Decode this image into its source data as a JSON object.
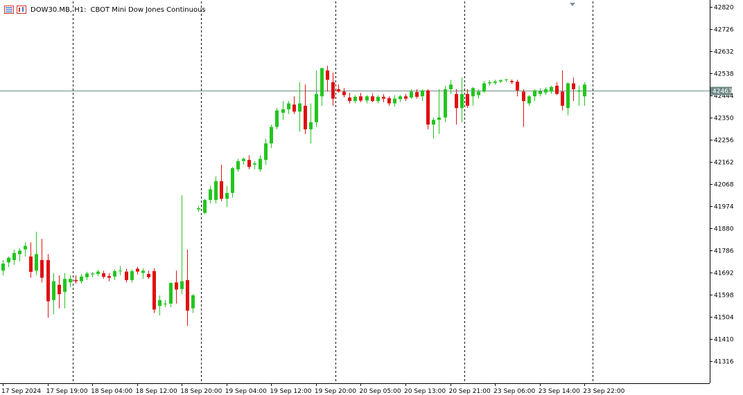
{
  "header": {
    "symbol": "DOW30.MB",
    "timeframe": "H1:",
    "description": "CBOT Mini Dow Jones Continuous"
  },
  "icons": [
    "quotes-icon",
    "chart-icon",
    "scroll-marker-icon"
  ],
  "colors": {
    "bull": "#22c51e",
    "bear": "#e01010",
    "current_price_line": "#6f8a87",
    "price_tag_bg": "#6f8a87",
    "separator": "#000000",
    "axis": "#000000"
  },
  "chart_data": {
    "type": "candlestick",
    "ylim": [
      41222,
      42843
    ],
    "y_ticks": [
      42820,
      42726,
      42632,
      42538,
      42444,
      42350,
      42256,
      42162,
      42068,
      41974,
      41880,
      41786,
      41692,
      41598,
      41504,
      41410,
      41316
    ],
    "current_price": 42463,
    "x_labels": [
      {
        "label": "17 Sep 2024",
        "bar": 0
      },
      {
        "label": "17 Sep 19:00",
        "bar": 8
      },
      {
        "label": "18 Sep 04:00",
        "bar": 16
      },
      {
        "label": "18 Sep 12:00",
        "bar": 24
      },
      {
        "label": "18 Sep 20:00",
        "bar": 32
      },
      {
        "label": "19 Sep 04:00",
        "bar": 40
      },
      {
        "label": "19 Sep 12:00",
        "bar": 48
      },
      {
        "label": "19 Sep 20:00",
        "bar": 56
      },
      {
        "label": "20 Sep 05:00",
        "bar": 64
      },
      {
        "label": "20 Sep 13:00",
        "bar": 72
      },
      {
        "label": "20 Sep 21:00",
        "bar": 80
      },
      {
        "label": "23 Sep 06:00",
        "bar": 88
      },
      {
        "label": "23 Sep 14:00",
        "bar": 96
      },
      {
        "label": "23 Sep 22:00",
        "bar": 104
      }
    ],
    "day_separators_after_bar": [
      12.5,
      35.5,
      59.5,
      82.5,
      105.5
    ],
    "candles": [
      {
        "o": 41700,
        "h": 41745,
        "l": 41680,
        "c": 41730
      },
      {
        "o": 41735,
        "h": 41760,
        "l": 41715,
        "c": 41755
      },
      {
        "o": 41745,
        "h": 41790,
        "l": 41725,
        "c": 41775
      },
      {
        "o": 41770,
        "h": 41795,
        "l": 41740,
        "c": 41785
      },
      {
        "o": 41790,
        "h": 41820,
        "l": 41760,
        "c": 41805
      },
      {
        "o": 41760,
        "h": 41820,
        "l": 41670,
        "c": 41695
      },
      {
        "o": 41700,
        "h": 41865,
        "l": 41680,
        "c": 41770
      },
      {
        "o": 41745,
        "h": 41835,
        "l": 41650,
        "c": 41670
      },
      {
        "o": 41745,
        "h": 41770,
        "l": 41500,
        "c": 41570
      },
      {
        "o": 41575,
        "h": 41690,
        "l": 41515,
        "c": 41655
      },
      {
        "o": 41640,
        "h": 41680,
        "l": 41540,
        "c": 41600
      },
      {
        "o": 41610,
        "h": 41690,
        "l": 41540,
        "c": 41665
      },
      {
        "o": 41650,
        "h": 41680,
        "l": 41630,
        "c": 41665
      },
      {
        "o": 41660,
        "h": 41680,
        "l": 41645,
        "c": 41655
      },
      {
        "o": 41655,
        "h": 41685,
        "l": 41645,
        "c": 41675
      },
      {
        "o": 41672,
        "h": 41695,
        "l": 41660,
        "c": 41688
      },
      {
        "o": 41684,
        "h": 41694,
        "l": 41672,
        "c": 41688
      },
      {
        "o": 41686,
        "h": 41704,
        "l": 41676,
        "c": 41696
      },
      {
        "o": 41689,
        "h": 41700,
        "l": 41665,
        "c": 41674
      },
      {
        "o": 41677,
        "h": 41690,
        "l": 41655,
        "c": 41670
      },
      {
        "o": 41675,
        "h": 41705,
        "l": 41660,
        "c": 41698
      },
      {
        "o": 41698,
        "h": 41720,
        "l": 41680,
        "c": 41700
      },
      {
        "o": 41696,
        "h": 41708,
        "l": 41650,
        "c": 41660
      },
      {
        "o": 41660,
        "h": 41705,
        "l": 41650,
        "c": 41698
      },
      {
        "o": 41708,
        "h": 41716,
        "l": 41684,
        "c": 41696
      },
      {
        "o": 41690,
        "h": 41710,
        "l": 41665,
        "c": 41700
      },
      {
        "o": 41686,
        "h": 41700,
        "l": 41665,
        "c": 41672
      },
      {
        "o": 41698,
        "h": 41710,
        "l": 41520,
        "c": 41535
      },
      {
        "o": 41550,
        "h": 41595,
        "l": 41510,
        "c": 41575
      },
      {
        "o": 41558,
        "h": 41575,
        "l": 41545,
        "c": 41560
      },
      {
        "o": 41560,
        "h": 41650,
        "l": 41545,
        "c": 41648
      },
      {
        "o": 41650,
        "h": 41700,
        "l": 41560,
        "c": 41620
      },
      {
        "o": 41622,
        "h": 42020,
        "l": 41600,
        "c": 41655
      },
      {
        "o": 41660,
        "h": 41790,
        "l": 41465,
        "c": 41530
      },
      {
        "o": 41540,
        "h": 41600,
        "l": 41520,
        "c": 41595
      },
      {
        "o": 41960,
        "h": 41975,
        "l": 41950,
        "c": 41965
      },
      {
        "o": 41945,
        "h": 42005,
        "l": 41940,
        "c": 42000
      },
      {
        "o": 42000,
        "h": 42060,
        "l": 41985,
        "c": 42045
      },
      {
        "o": 42000,
        "h": 42100,
        "l": 41985,
        "c": 42080
      },
      {
        "o": 42080,
        "h": 42150,
        "l": 41995,
        "c": 42005
      },
      {
        "o": 42005,
        "h": 42060,
        "l": 41970,
        "c": 42030
      },
      {
        "o": 42030,
        "h": 42140,
        "l": 42010,
        "c": 42135
      },
      {
        "o": 42130,
        "h": 42175,
        "l": 42120,
        "c": 42165
      },
      {
        "o": 42165,
        "h": 42180,
        "l": 42150,
        "c": 42175
      },
      {
        "o": 42170,
        "h": 42190,
        "l": 42130,
        "c": 42140
      },
      {
        "o": 42150,
        "h": 42165,
        "l": 42130,
        "c": 42155
      },
      {
        "o": 42130,
        "h": 42190,
        "l": 42120,
        "c": 42175
      },
      {
        "o": 42170,
        "h": 42260,
        "l": 42150,
        "c": 42240
      },
      {
        "o": 42240,
        "h": 42320,
        "l": 42220,
        "c": 42310
      },
      {
        "o": 42310,
        "h": 42390,
        "l": 42300,
        "c": 42380
      },
      {
        "o": 42370,
        "h": 42420,
        "l": 42340,
        "c": 42385
      },
      {
        "o": 42385,
        "h": 42420,
        "l": 42365,
        "c": 42410
      },
      {
        "o": 42405,
        "h": 42440,
        "l": 42365,
        "c": 42375
      },
      {
        "o": 42375,
        "h": 42500,
        "l": 42290,
        "c": 42410
      },
      {
        "o": 42400,
        "h": 42490,
        "l": 42280,
        "c": 42300
      },
      {
        "o": 42300,
        "h": 42410,
        "l": 42240,
        "c": 42330
      },
      {
        "o": 42330,
        "h": 42550,
        "l": 42310,
        "c": 42450
      },
      {
        "o": 42440,
        "h": 42560,
        "l": 42400,
        "c": 42560
      },
      {
        "o": 42550,
        "h": 42570,
        "l": 42460,
        "c": 42510
      },
      {
        "o": 42500,
        "h": 42540,
        "l": 42400,
        "c": 42430
      },
      {
        "o": 42470,
        "h": 42490,
        "l": 42455,
        "c": 42460
      },
      {
        "o": 42460,
        "h": 42475,
        "l": 42435,
        "c": 42445
      },
      {
        "o": 42435,
        "h": 42455,
        "l": 42410,
        "c": 42420
      },
      {
        "o": 42420,
        "h": 42445,
        "l": 42410,
        "c": 42438
      },
      {
        "o": 42440,
        "h": 42455,
        "l": 42415,
        "c": 42422
      },
      {
        "o": 42422,
        "h": 42445,
        "l": 42410,
        "c": 42440
      },
      {
        "o": 42440,
        "h": 42452,
        "l": 42415,
        "c": 42420
      },
      {
        "o": 42420,
        "h": 42445,
        "l": 42410,
        "c": 42438
      },
      {
        "o": 42438,
        "h": 42450,
        "l": 42415,
        "c": 42430
      },
      {
        "o": 42432,
        "h": 42440,
        "l": 42400,
        "c": 42410
      },
      {
        "o": 42410,
        "h": 42445,
        "l": 42395,
        "c": 42430
      },
      {
        "o": 42428,
        "h": 42445,
        "l": 42415,
        "c": 42440
      },
      {
        "o": 42440,
        "h": 42450,
        "l": 42420,
        "c": 42430
      },
      {
        "o": 42435,
        "h": 42470,
        "l": 42430,
        "c": 42460
      },
      {
        "o": 42458,
        "h": 42470,
        "l": 42430,
        "c": 42438
      },
      {
        "o": 42440,
        "h": 42470,
        "l": 42420,
        "c": 42465
      },
      {
        "o": 42465,
        "h": 42470,
        "l": 42300,
        "c": 42320
      },
      {
        "o": 42320,
        "h": 42350,
        "l": 42260,
        "c": 42340
      },
      {
        "o": 42340,
        "h": 42470,
        "l": 42280,
        "c": 42350
      },
      {
        "o": 42350,
        "h": 42485,
        "l": 42330,
        "c": 42470
      },
      {
        "o": 42470,
        "h": 42510,
        "l": 42450,
        "c": 42490
      },
      {
        "o": 42450,
        "h": 42470,
        "l": 42320,
        "c": 42390
      },
      {
        "o": 42390,
        "h": 42520,
        "l": 42330,
        "c": 42450
      },
      {
        "o": 42450,
        "h": 42470,
        "l": 42390,
        "c": 42400
      },
      {
        "o": 42440,
        "h": 42480,
        "l": 42400,
        "c": 42475
      },
      {
        "o": 42445,
        "h": 42470,
        "l": 42430,
        "c": 42460
      },
      {
        "o": 42460,
        "h": 42505,
        "l": 42455,
        "c": 42495
      },
      {
        "o": 42495,
        "h": 42508,
        "l": 42485,
        "c": 42500
      },
      {
        "o": 42497,
        "h": 42510,
        "l": 42490,
        "c": 42503
      },
      {
        "o": 42503,
        "h": 42512,
        "l": 42496,
        "c": 42508
      },
      {
        "o": 42510,
        "h": 42514,
        "l": 42500,
        "c": 42512
      },
      {
        "o": 42505,
        "h": 42512,
        "l": 42492,
        "c": 42500
      },
      {
        "o": 42502,
        "h": 42510,
        "l": 42440,
        "c": 42465
      },
      {
        "o": 42460,
        "h": 42470,
        "l": 42310,
        "c": 42420
      },
      {
        "o": 42410,
        "h": 42445,
        "l": 42400,
        "c": 42440
      },
      {
        "o": 42440,
        "h": 42470,
        "l": 42420,
        "c": 42465
      },
      {
        "o": 42450,
        "h": 42475,
        "l": 42440,
        "c": 42462
      },
      {
        "o": 42456,
        "h": 42478,
        "l": 42446,
        "c": 42470
      },
      {
        "o": 42460,
        "h": 42485,
        "l": 42450,
        "c": 42480
      },
      {
        "o": 42485,
        "h": 42500,
        "l": 42445,
        "c": 42450
      },
      {
        "o": 42460,
        "h": 42550,
        "l": 42380,
        "c": 42400
      },
      {
        "o": 42390,
        "h": 42500,
        "l": 42360,
        "c": 42495
      },
      {
        "o": 42495,
        "h": 42520,
        "l": 42420,
        "c": 42470
      },
      {
        "o": 42460,
        "h": 42485,
        "l": 42400,
        "c": 42465
      },
      {
        "o": 42440,
        "h": 42500,
        "l": 42400,
        "c": 42490
      }
    ]
  }
}
